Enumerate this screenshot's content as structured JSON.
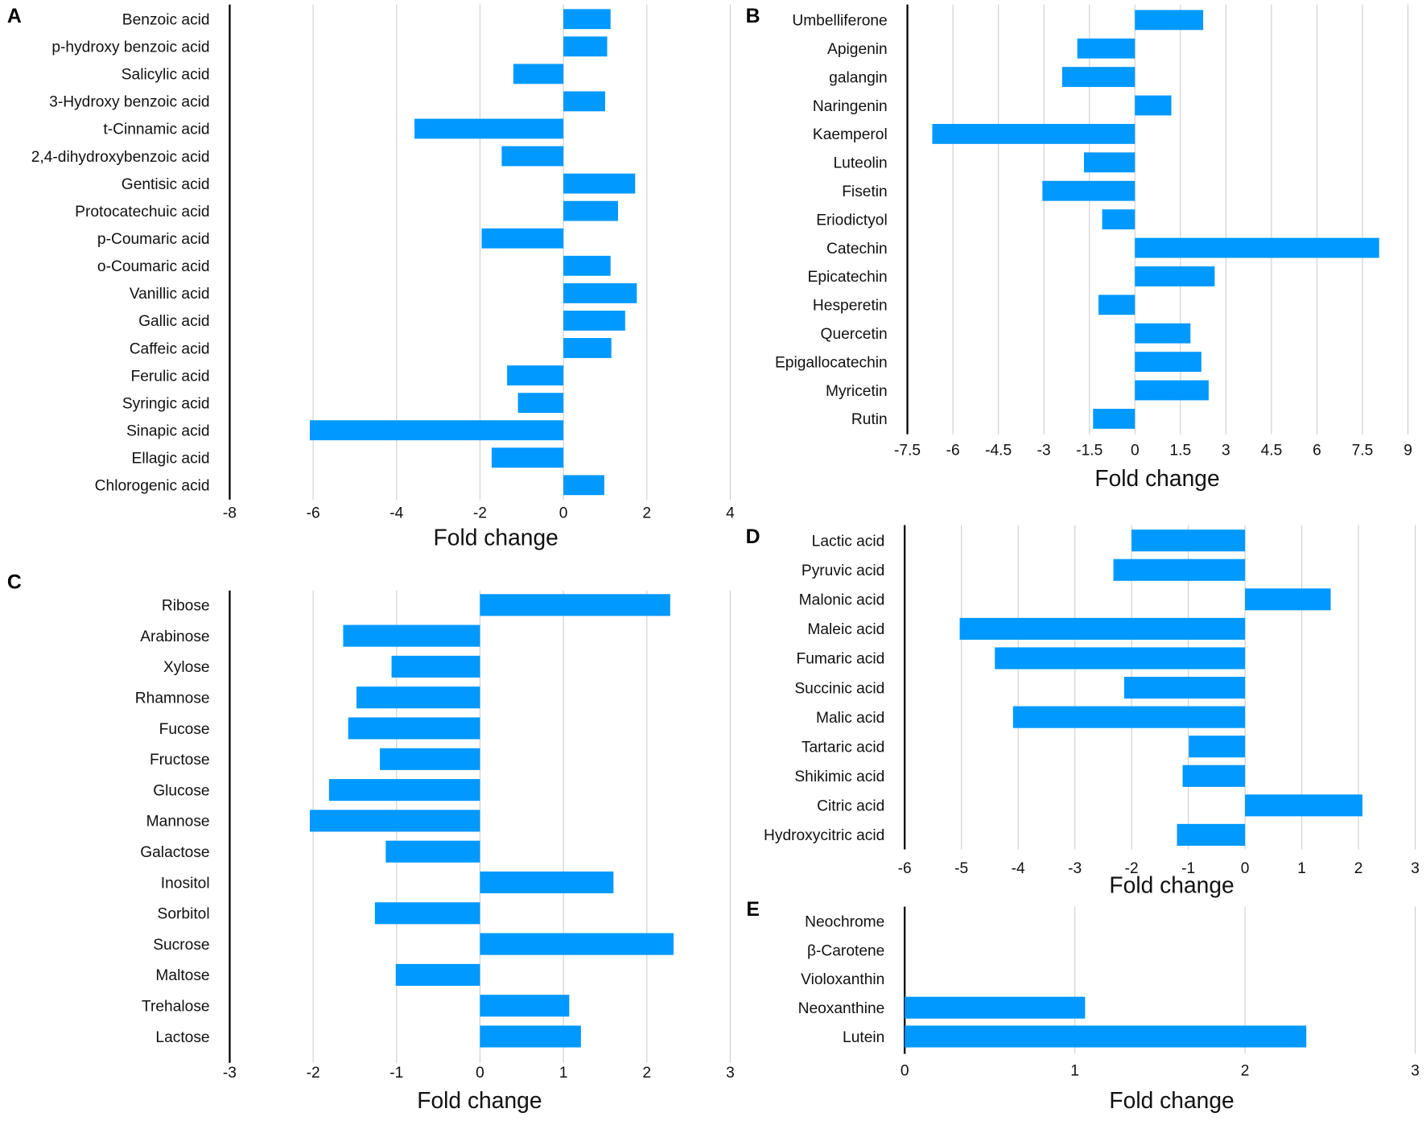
{
  "bar_color": "#0099ff",
  "chart_data": [
    {
      "panel": "A",
      "type": "bar",
      "orientation": "horizontal",
      "xlabel": "Fold change",
      "xlim": [
        -8,
        4
      ],
      "xticks": [
        "-8",
        "-6",
        "-4",
        "-2",
        "0",
        "2",
        "4"
      ],
      "grid": true,
      "categories": [
        "Benzoic acid",
        "p-hydroxy benzoic acid",
        "Salicylic acid",
        "3-Hydroxy benzoic acid",
        "t-Cinnamic acid",
        "2,4-dihydroxybenzoic acid",
        "Gentisic acid",
        "Protocatechuic acid",
        "p-Coumaric acid",
        "o-Coumaric acid",
        "Vanillic acid",
        "Gallic acid",
        "Caffeic acid",
        "Ferulic acid",
        "Syringic acid",
        "Sinapic acid",
        "Ellagic acid",
        "Chlorogenic acid"
      ],
      "values": [
        1.13,
        1.05,
        -1.2,
        1.0,
        -3.57,
        -1.48,
        1.72,
        1.31,
        -1.96,
        1.13,
        1.76,
        1.48,
        1.15,
        -1.35,
        -1.09,
        -6.08,
        -1.72,
        0.98
      ]
    },
    {
      "panel": "B",
      "type": "bar",
      "orientation": "horizontal",
      "xlabel": "Fold change",
      "xlim": [
        -7.5,
        9
      ],
      "xticks": [
        "-7.5",
        "-6",
        "-4.5",
        "-3",
        "-1.5",
        "0",
        "1.5",
        "3",
        "4.5",
        "6",
        "7.5",
        "9"
      ],
      "grid": true,
      "categories": [
        "Umbelliferone",
        "Apigenin",
        "galangin",
        "Naringenin",
        "Kaemperol",
        "Luteolin",
        "Fisetin",
        "Eriodictyol",
        "Catechin",
        "Epicatechin",
        "Hesperetin",
        "Quercetin",
        "Epigallocatechin",
        "Myricetin",
        "Rutin"
      ],
      "values": [
        2.25,
        -1.9,
        -2.4,
        1.2,
        -6.68,
        -1.68,
        -3.05,
        -1.08,
        8.05,
        2.63,
        -1.2,
        1.83,
        2.19,
        2.43,
        -1.38
      ]
    },
    {
      "panel": "C",
      "type": "bar",
      "orientation": "horizontal",
      "xlabel": "Fold change",
      "xlim": [
        -3,
        3
      ],
      "xticks": [
        "-3",
        "-2",
        "-1",
        "0",
        "1",
        "2",
        "3"
      ],
      "grid": true,
      "categories": [
        "Ribose",
        "Arabinose",
        "Xylose",
        "Rhamnose",
        "Fucose",
        "Fructose",
        "Glucose",
        "Mannose",
        "Galactose",
        "Inositol",
        "Sorbitol",
        "Sucrose",
        "Maltose",
        "Trehalose",
        "Lactose"
      ],
      "values": [
        2.28,
        -1.64,
        -1.06,
        -1.48,
        -1.58,
        -1.2,
        -1.81,
        -2.04,
        -1.13,
        1.6,
        -1.26,
        2.32,
        -1.01,
        1.07,
        1.21
      ]
    },
    {
      "panel": "D",
      "type": "bar",
      "orientation": "horizontal",
      "xlabel": "Fold change",
      "xlim": [
        -6,
        3
      ],
      "xticks": [
        "-6",
        "-5",
        "-4",
        "-3",
        "-2",
        "-1",
        "0",
        "1",
        "2",
        "3"
      ],
      "grid": true,
      "categories": [
        "Lactic acid",
        "Pyruvic acid",
        "Malonic acid",
        "Maleic acid",
        "Fumaric acid",
        "Succinic acid",
        "Malic acid",
        "Tartaric acid",
        "Shikimic acid",
        "Citric acid",
        "Hydroxycitric acid"
      ],
      "values": [
        -2.0,
        -2.32,
        1.51,
        -5.03,
        -4.41,
        -2.13,
        -4.09,
        -0.99,
        -1.1,
        2.07,
        -1.2
      ]
    },
    {
      "panel": "E",
      "type": "bar",
      "orientation": "horizontal",
      "xlabel": "Fold change",
      "xlim": [
        0,
        3
      ],
      "xticks": [
        "0",
        "1",
        "2",
        "3"
      ],
      "grid": true,
      "categories": [
        "Neochrome",
        "β-Carotene",
        "Violoxanthin",
        "Neoxanthine",
        "Lutein"
      ],
      "values": [
        0,
        0,
        0,
        1.06,
        2.36
      ]
    }
  ]
}
